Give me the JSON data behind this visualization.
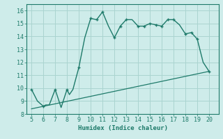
{
  "title": "",
  "xlabel": "Humidex (Indice chaleur)",
  "line1_x": [
    5,
    5.5,
    6,
    6.2,
    6.5,
    7,
    7.5,
    8,
    8.2,
    8.5,
    9,
    9.5,
    10,
    10.5,
    11,
    11.5,
    12,
    12.5,
    13,
    13.5,
    14,
    14.5,
    15,
    15.5,
    16,
    16.5,
    17,
    17.5,
    18,
    18.5,
    19,
    19.5,
    20
  ],
  "line1_y": [
    9.9,
    9.0,
    8.6,
    8.7,
    8.7,
    9.9,
    8.5,
    9.9,
    9.5,
    9.9,
    11.6,
    13.9,
    15.4,
    15.3,
    15.9,
    14.8,
    13.9,
    14.8,
    15.3,
    15.3,
    14.8,
    14.8,
    15.0,
    14.9,
    14.8,
    15.3,
    15.3,
    14.9,
    14.2,
    14.3,
    13.8,
    12.0,
    11.3
  ],
  "line2_x": [
    5,
    20
  ],
  "line2_y": [
    8.4,
    11.3
  ],
  "marker_x": [
    5,
    6,
    7,
    8,
    9,
    10,
    10.5,
    11,
    12,
    12.5,
    13,
    14,
    14.5,
    15,
    15.5,
    16,
    16.5,
    17,
    18,
    18.5,
    19,
    20
  ],
  "marker_y": [
    9.9,
    8.6,
    9.9,
    9.9,
    11.6,
    15.4,
    15.3,
    15.9,
    13.9,
    14.8,
    15.3,
    14.8,
    14.8,
    15.0,
    14.9,
    14.8,
    15.3,
    15.3,
    14.2,
    14.3,
    13.8,
    11.3
  ],
  "line_color": "#1e7a6a",
  "bg_color": "#ceecea",
  "grid_color": "#aad4d0",
  "xlim": [
    4.6,
    20.8
  ],
  "ylim": [
    8.0,
    16.5
  ],
  "xticks": [
    5,
    6,
    7,
    8,
    9,
    10,
    11,
    12,
    13,
    14,
    15,
    16,
    17,
    18,
    19,
    20
  ],
  "yticks": [
    8,
    9,
    10,
    11,
    12,
    13,
    14,
    15,
    16
  ]
}
